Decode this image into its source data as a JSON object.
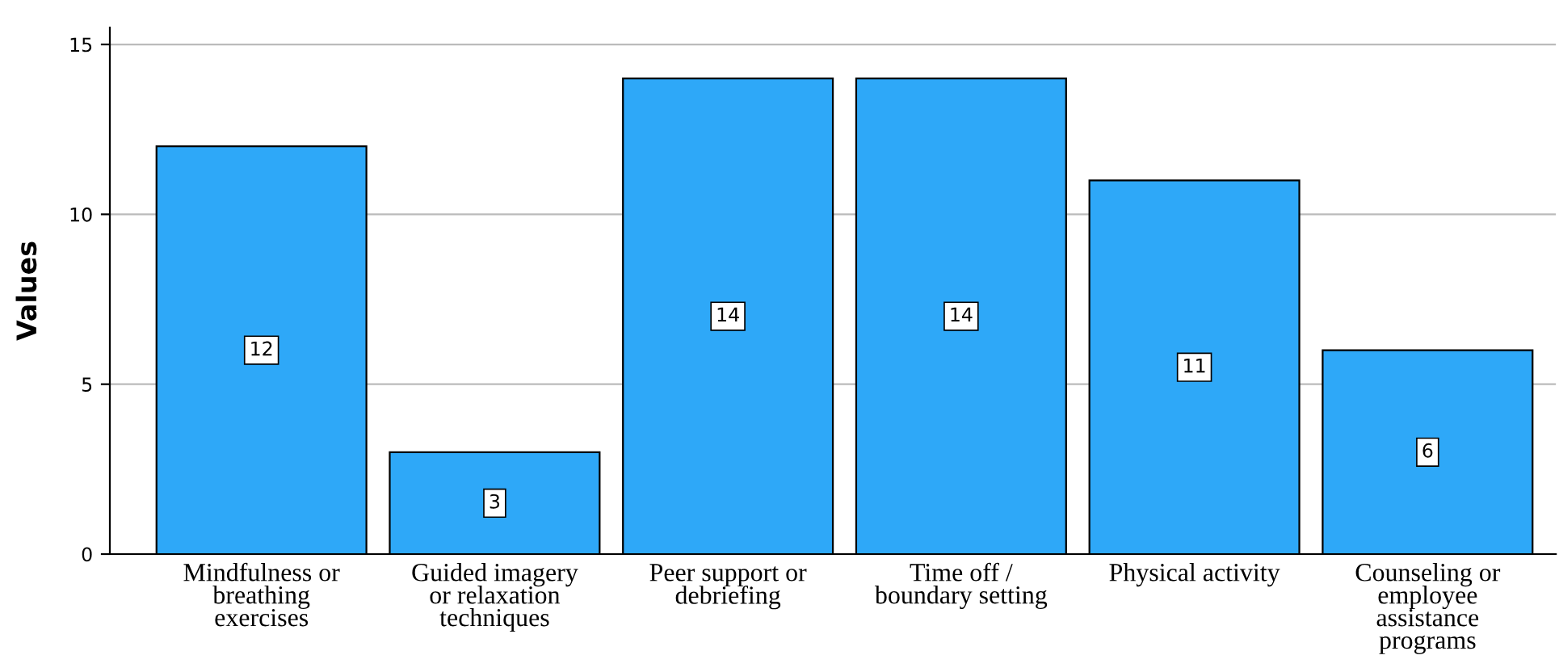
{
  "chart_data": {
    "type": "bar",
    "ylabel": "Values",
    "categories": [
      "Mindfulness or\nbreathing\nexercises",
      "Guided imagery\nor relaxation\ntechniques",
      "Peer support or\ndebriefing",
      "Time off /\nboundary setting",
      "Physical activity",
      "Counseling or\nemployee\nassistance\nprograms"
    ],
    "values": [
      12,
      3,
      14,
      14,
      11,
      6
    ],
    "color": "#2ea8f8",
    "ylim": [
      0,
      15.5
    ],
    "yticks": [
      0,
      5,
      10,
      15
    ],
    "grid": "y",
    "data_labels": true
  }
}
